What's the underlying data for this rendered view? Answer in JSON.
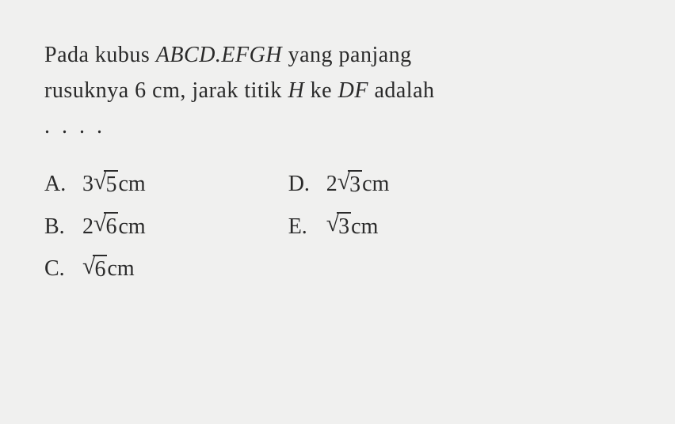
{
  "question": {
    "line1_part1": "Pada kubus ",
    "line1_cube": "ABCD.EFGH",
    "line1_part2": " yang panjang",
    "line2_part1": "rusuknya 6 cm, jarak titik ",
    "line2_H": "H",
    "line2_part2": " ke ",
    "line2_DF": "DF",
    "line2_part3": " adalah",
    "dots": ". . . ."
  },
  "options": {
    "a": {
      "label": "A.",
      "coeff": "3",
      "radicand": "5",
      "unit": " cm"
    },
    "b": {
      "label": "B.",
      "coeff": "2",
      "radicand": "6",
      "unit": " cm"
    },
    "c": {
      "label": "C.",
      "coeff": "",
      "radicand": "6",
      "unit": " cm"
    },
    "d": {
      "label": "D.",
      "coeff": "2",
      "radicand": "3",
      "unit": " cm"
    },
    "e": {
      "label": "E.",
      "coeff": "",
      "radicand": "3",
      "unit": " cm"
    }
  },
  "style": {
    "background_color": "#f0f0ef",
    "text_color": "#2a2a2a",
    "font_family": "Times New Roman",
    "question_fontsize": 28,
    "option_fontsize": 28
  }
}
